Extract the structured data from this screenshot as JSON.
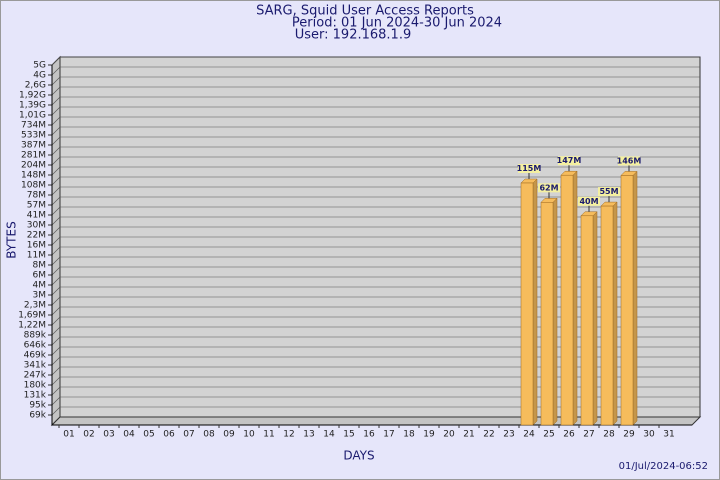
{
  "chart_data": {
    "type": "bar3d",
    "title": "SARG, Squid User Access Reports",
    "period": "Period: 01 Jun 2024-30 Jun 2024",
    "user": "User: 192.168.1.9",
    "y_label": "BYTES",
    "x_label": "DAYS",
    "timestamp": "01/Jul/2024-06:52",
    "categories": [
      "01",
      "02",
      "03",
      "04",
      "05",
      "06",
      "07",
      "08",
      "09",
      "10",
      "11",
      "12",
      "13",
      "14",
      "15",
      "16",
      "17",
      "18",
      "19",
      "20",
      "21",
      "22",
      "23",
      "24",
      "25",
      "26",
      "27",
      "28",
      "29",
      "30",
      "31"
    ],
    "values": [
      null,
      null,
      null,
      null,
      null,
      null,
      null,
      null,
      null,
      null,
      null,
      null,
      null,
      null,
      null,
      null,
      null,
      null,
      null,
      null,
      null,
      null,
      null,
      115000000,
      62000000,
      147000000,
      40000000,
      55000000,
      146000000,
      null,
      null
    ],
    "value_labels": [
      null,
      null,
      null,
      null,
      null,
      null,
      null,
      null,
      null,
      null,
      null,
      null,
      null,
      null,
      null,
      null,
      null,
      null,
      null,
      null,
      null,
      null,
      null,
      "115M",
      "62M",
      "147M",
      "40M",
      "55M",
      "146M",
      null,
      null
    ],
    "color": "#f6bc5c",
    "ylim": [
      50000,
      5000000000
    ],
    "yticks": [
      {
        "value": 69000,
        "label": "69k"
      },
      {
        "value": 95000,
        "label": "95k"
      },
      {
        "value": 131000,
        "label": "131k"
      },
      {
        "value": 180000,
        "label": "180k"
      },
      {
        "value": 247000,
        "label": "247k"
      },
      {
        "value": 341000,
        "label": "341k"
      },
      {
        "value": 469000,
        "label": "469k"
      },
      {
        "value": 646000,
        "label": "646k"
      },
      {
        "value": 889000,
        "label": "889k"
      },
      {
        "value": 1220000,
        "label": "1,22M"
      },
      {
        "value": 1690000,
        "label": "1,69M"
      },
      {
        "value": 2300000,
        "label": "2,3M"
      },
      {
        "value": 3000000,
        "label": "3M"
      },
      {
        "value": 4000000,
        "label": "4M"
      },
      {
        "value": 6000000,
        "label": "6M"
      },
      {
        "value": 8000000,
        "label": "8M"
      },
      {
        "value": 11000000,
        "label": "11M"
      },
      {
        "value": 16000000,
        "label": "16M"
      },
      {
        "value": 22000000,
        "label": "22M"
      },
      {
        "value": 30000000,
        "label": "30M"
      },
      {
        "value": 41000000,
        "label": "41M"
      },
      {
        "value": 57000000,
        "label": "57M"
      },
      {
        "value": 78000000,
        "label": "78M"
      },
      {
        "value": 108000000,
        "label": "108M"
      },
      {
        "value": 148000000,
        "label": "148M"
      },
      {
        "value": 204000000,
        "label": "204M"
      },
      {
        "value": 281000000,
        "label": "281M"
      },
      {
        "value": 387000000,
        "label": "387M"
      },
      {
        "value": 533000000,
        "label": "533M"
      },
      {
        "value": 734000000,
        "label": "734M"
      },
      {
        "value": 1010000000,
        "label": "1,01G"
      },
      {
        "value": 1390000000,
        "label": "1,39G"
      },
      {
        "value": 1920000000,
        "label": "1,92G"
      },
      {
        "value": 2600000000,
        "label": "2,6G"
      },
      {
        "value": 4000000000,
        "label": "4G"
      },
      {
        "value": 5000000000,
        "label": "5G"
      }
    ],
    "grid": true
  }
}
